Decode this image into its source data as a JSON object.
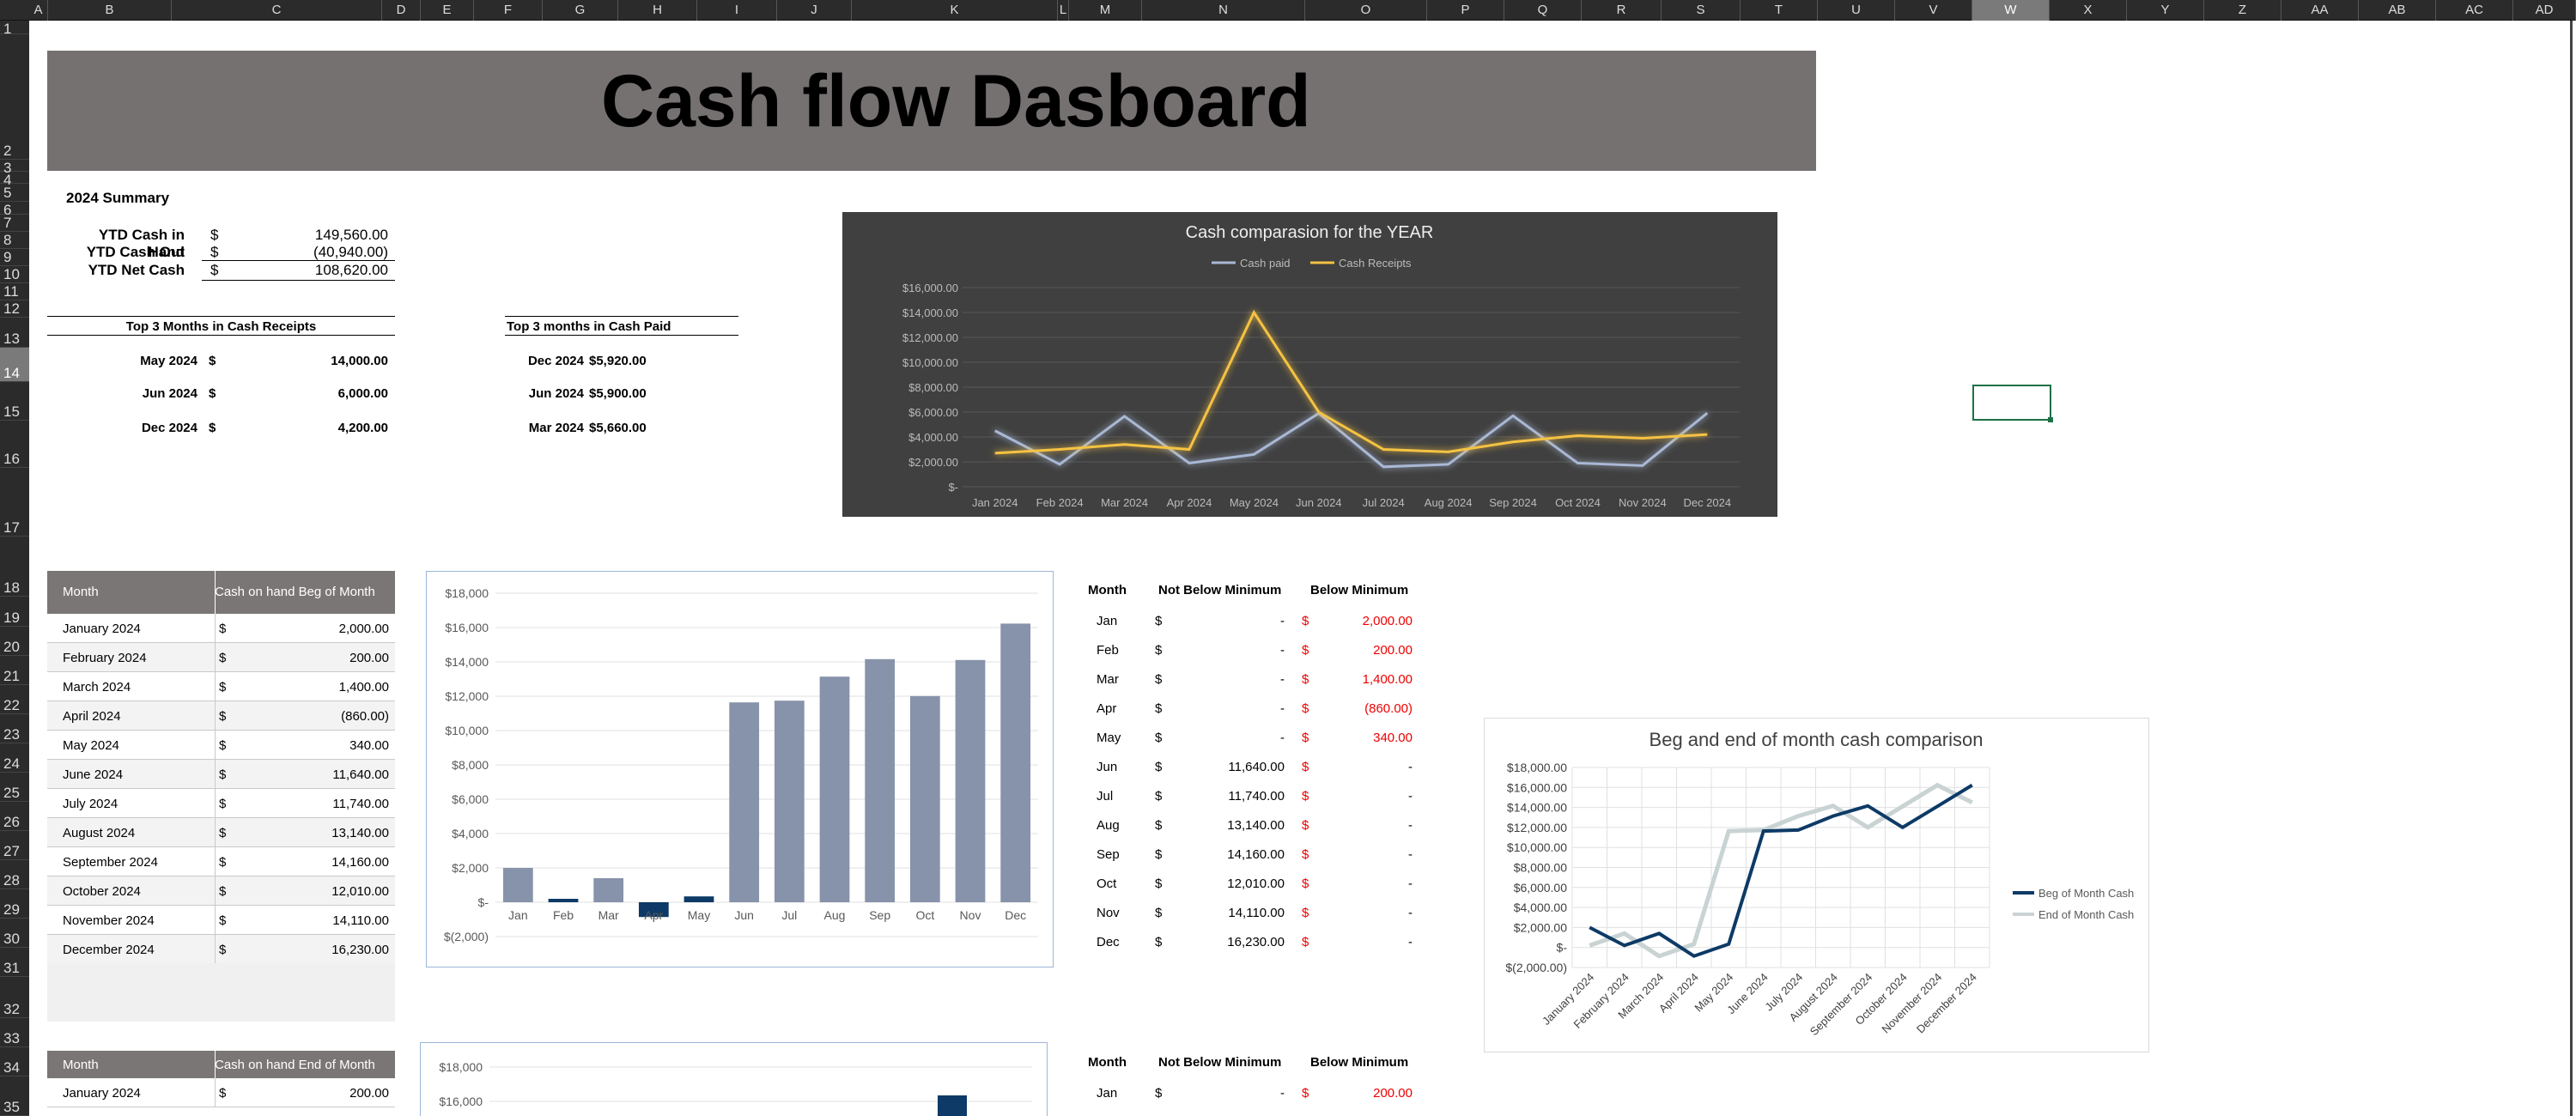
{
  "columns": [
    "A",
    "B",
    "C",
    "D",
    "E",
    "F",
    "G",
    "H",
    "I",
    "J",
    "K",
    "L",
    "M",
    "N",
    "O",
    "P",
    "Q",
    "R",
    "S",
    "T",
    "U",
    "V",
    "W",
    "X",
    "Y",
    "Z",
    "AA",
    "AB",
    "AC",
    "AD"
  ],
  "rows": [
    "1",
    "2",
    "3",
    "4",
    "5",
    "6",
    "7",
    "8",
    "9",
    "10",
    "11",
    "12",
    "13",
    "14",
    "15",
    "16",
    "17",
    "18",
    "19",
    "20",
    "21",
    "22",
    "23",
    "24",
    "25",
    "26",
    "27",
    "28",
    "29",
    "30",
    "31",
    "32",
    "33",
    "34",
    "35"
  ],
  "selected_column": "W",
  "selected_row": "14",
  "title": "Cash flow Dasboard",
  "summary": {
    "heading": "2024 Summary",
    "items": [
      {
        "label": "YTD Cash in Hand",
        "cur": "$",
        "value": "149,560.00"
      },
      {
        "label": "YTD Cash Out",
        "cur": "$",
        "value": "(40,940.00)"
      },
      {
        "label": "YTD Net Cash",
        "cur": "$",
        "value": "108,620.00"
      }
    ]
  },
  "top_receipts": {
    "heading": "Top 3 Months in Cash Receipts",
    "items": [
      {
        "month": "May 2024",
        "cur": "$",
        "value": "14,000.00"
      },
      {
        "month": "Jun 2024",
        "cur": "$",
        "value": "6,000.00"
      },
      {
        "month": "Dec 2024",
        "cur": "$",
        "value": "4,200.00"
      }
    ]
  },
  "top_paid": {
    "heading": "Top 3 months in Cash Paid",
    "items": [
      {
        "month": "Dec 2024",
        "value": "$5,920.00"
      },
      {
        "month": "Jun 2024",
        "value": "$5,900.00"
      },
      {
        "month": "Mar 2024",
        "value": "$5,660.00"
      }
    ]
  },
  "beg_table": {
    "headers": [
      "Month",
      "Cash on hand Beg of Month"
    ],
    "rows": [
      {
        "month": "January 2024",
        "cur": "$",
        "value": "2,000.00"
      },
      {
        "month": "February 2024",
        "cur": "$",
        "value": "200.00"
      },
      {
        "month": "March 2024",
        "cur": "$",
        "value": "1,400.00"
      },
      {
        "month": "April 2024",
        "cur": "$",
        "value": "(860.00)"
      },
      {
        "month": "May 2024",
        "cur": "$",
        "value": "340.00"
      },
      {
        "month": "June 2024",
        "cur": "$",
        "value": "11,640.00"
      },
      {
        "month": "July 2024",
        "cur": "$",
        "value": "11,740.00"
      },
      {
        "month": "August 2024",
        "cur": "$",
        "value": "13,140.00"
      },
      {
        "month": "September 2024",
        "cur": "$",
        "value": "14,160.00"
      },
      {
        "month": "October 2024",
        "cur": "$",
        "value": "12,010.00"
      },
      {
        "month": "November 2024",
        "cur": "$",
        "value": "14,110.00"
      },
      {
        "month": "December 2024",
        "cur": "$",
        "value": "16,230.00"
      }
    ]
  },
  "end_table": {
    "headers": [
      "Month",
      "Cash on hand End of Month"
    ],
    "rows": [
      {
        "month": "January 2024",
        "cur": "$",
        "value": "200.00"
      }
    ]
  },
  "min_table_1": {
    "headers": [
      "Month",
      "Not Below Minimum",
      "Below Minimum"
    ],
    "rows": [
      {
        "m": "Jan",
        "c1": "$",
        "v1": "-",
        "c2": "$",
        "v2": "2,000.00"
      },
      {
        "m": "Feb",
        "c1": "$",
        "v1": "-",
        "c2": "$",
        "v2": "200.00"
      },
      {
        "m": "Mar",
        "c1": "$",
        "v1": "-",
        "c2": "$",
        "v2": "1,400.00"
      },
      {
        "m": "Apr",
        "c1": "$",
        "v1": "-",
        "c2": "$",
        "v2": "(860.00)"
      },
      {
        "m": "May",
        "c1": "$",
        "v1": "-",
        "c2": "$",
        "v2": "340.00"
      },
      {
        "m": "Jun",
        "c1": "$",
        "v1": "11,640.00",
        "c2": "$",
        "v2": "-"
      },
      {
        "m": "Jul",
        "c1": "$",
        "v1": "11,740.00",
        "c2": "$",
        "v2": "-"
      },
      {
        "m": "Aug",
        "c1": "$",
        "v1": "13,140.00",
        "c2": "$",
        "v2": "-"
      },
      {
        "m": "Sep",
        "c1": "$",
        "v1": "14,160.00",
        "c2": "$",
        "v2": "-"
      },
      {
        "m": "Oct",
        "c1": "$",
        "v1": "12,010.00",
        "c2": "$",
        "v2": "-"
      },
      {
        "m": "Nov",
        "c1": "$",
        "v1": "14,110.00",
        "c2": "$",
        "v2": "-"
      },
      {
        "m": "Dec",
        "c1": "$",
        "v1": "16,230.00",
        "c2": "$",
        "v2": "-"
      }
    ]
  },
  "min_table_2": {
    "headers": [
      "Month",
      "Not Below Minimum",
      "Below Minimum"
    ],
    "rows": [
      {
        "m": "Jan",
        "c1": "$",
        "v1": "-",
        "c2": "$",
        "v2": "200.00"
      }
    ]
  },
  "colors": {
    "dark_bg": "#404040",
    "receipts": "#f5c242",
    "paid": "#a9b8d4",
    "bar_pos": "#8793aa",
    "bar_neg": "#0d3a66",
    "beg_line": "#0d3a66",
    "end_line": "#c9d3d3",
    "red": "#e00000"
  },
  "chart_data": [
    {
      "type": "line",
      "title": "Cash comparasion for the YEAR",
      "categories": [
        "Jan 2024",
        "Feb 2024",
        "Mar 2024",
        "Apr 2024",
        "May 2024",
        "Jun 2024",
        "Jul 2024",
        "Aug 2024",
        "Sep 2024",
        "Oct 2024",
        "Nov 2024",
        "Dec 2024"
      ],
      "series": [
        {
          "name": "Cash paid",
          "values": [
            4500,
            1800,
            5660,
            1900,
            2600,
            5900,
            1600,
            1800,
            5700,
            1900,
            1700,
            5920
          ]
        },
        {
          "name": "Cash Receipts",
          "values": [
            2700,
            3000,
            3400,
            3000,
            14000,
            6000,
            3000,
            2800,
            3600,
            4100,
            3900,
            4200
          ]
        }
      ],
      "yticks": [
        "$16,000.00",
        "$14,000.00",
        "$12,000.00",
        "$10,000.00",
        "$8,000.00",
        "$6,000.00",
        "$4,000.00",
        "$2,000.00",
        "$-"
      ],
      "ylim": [
        0,
        16000
      ],
      "legend": "top"
    },
    {
      "type": "bar",
      "categories": [
        "Jan",
        "Feb",
        "Mar",
        "Apr",
        "May",
        "Jun",
        "Jul",
        "Aug",
        "Sep",
        "Oct",
        "Nov",
        "Dec"
      ],
      "values": [
        2000,
        200,
        1400,
        -860,
        340,
        11640,
        11740,
        13140,
        14160,
        12010,
        14110,
        16230
      ],
      "yticks": [
        "$18,000",
        "$16,000",
        "$14,000",
        "$12,000",
        "$10,000",
        "$8,000",
        "$6,000",
        "$4,000",
        "$2,000",
        "$-",
        "$(2,000)"
      ],
      "ylim": [
        -2000,
        18000
      ]
    },
    {
      "type": "line",
      "title": "Beg and end of month cash comparison",
      "categories": [
        "January 2024",
        "February 2024",
        "March 2024",
        "April 2024",
        "May 2024",
        "June 2024",
        "July 2024",
        "August 2024",
        "September 2024",
        "October 2024",
        "November 2024",
        "December 2024"
      ],
      "series": [
        {
          "name": "Beg of Month Cash",
          "values": [
            2000,
            200,
            1400,
            -860,
            340,
            11640,
            11740,
            13140,
            14160,
            12010,
            14110,
            16230
          ]
        },
        {
          "name": "End of Month Cash",
          "values": [
            200,
            1400,
            -860,
            340,
            11640,
            11740,
            13140,
            14160,
            12010,
            14110,
            16230,
            14500
          ]
        }
      ],
      "yticks": [
        "$18,000.00",
        "$16,000.00",
        "$14,000.00",
        "$12,000.00",
        "$10,000.00",
        "$8,000.00",
        "$6,000.00",
        "$4,000.00",
        "$2,000.00",
        "$-",
        "$(2,000.00)"
      ],
      "ylim": [
        -2000,
        18000
      ],
      "legend": "right"
    },
    {
      "type": "bar",
      "values": [],
      "yticks": [
        "$18,000",
        "$16,000"
      ],
      "ylim": [
        -2000,
        18000
      ]
    }
  ]
}
